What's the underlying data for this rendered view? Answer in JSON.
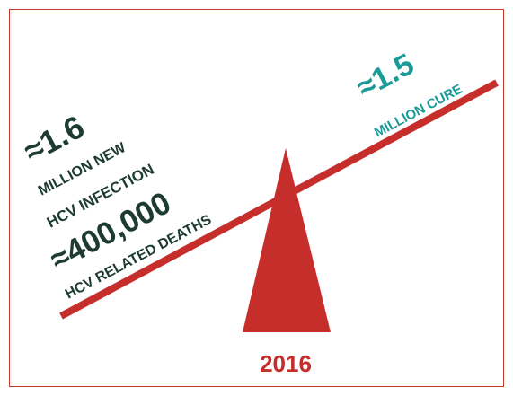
{
  "left": {
    "infections": {
      "value": "≈1.6",
      "label_1": "MILLION NEW",
      "label_2": "HCV INFECTION"
    },
    "deaths": {
      "value": "≈400,000",
      "label": "HCV RELATED DEATHS"
    }
  },
  "right": {
    "cures": {
      "value": "≈1.5",
      "label": "MILLION CURE"
    }
  },
  "year": "2016"
}
